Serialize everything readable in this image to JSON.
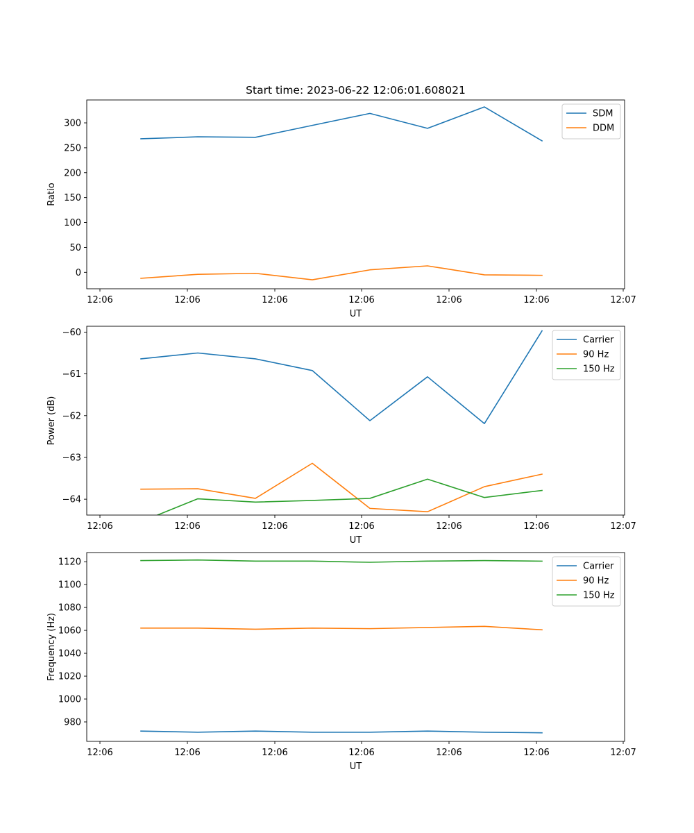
{
  "chart_data": [
    {
      "type": "line",
      "title": "Start time: 2023-06-22 12:06:01.608021",
      "xlabel": "UT",
      "ylabel": "Ratio",
      "x_tick_labels": [
        "12:06",
        "12:06",
        "12:06",
        "12:06",
        "12:06",
        "12:06",
        "12:07"
      ],
      "ylim": [
        -33,
        346
      ],
      "y_ticks": [
        0,
        50,
        100,
        150,
        200,
        250,
        300
      ],
      "legend_position": "top-right",
      "series": [
        {
          "name": "SDM",
          "color": "#1f77b4",
          "values": [
            268,
            272,
            271,
            295,
            319,
            289,
            332,
            264
          ]
        },
        {
          "name": "DDM",
          "color": "#ff7f0e",
          "values": [
            -12,
            -4,
            -2,
            -15,
            5,
            13,
            -5,
            -6
          ]
        }
      ]
    },
    {
      "type": "line",
      "title": "",
      "xlabel": "UT",
      "ylabel": "Power (dB)",
      "x_tick_labels": [
        "12:06",
        "12:06",
        "12:06",
        "12:06",
        "12:06",
        "12:06",
        "12:07"
      ],
      "ylim": [
        -64.38,
        -59.86
      ],
      "y_ticks": [
        -64,
        -63,
        -62,
        -61,
        -60
      ],
      "legend_position": "top-right",
      "series": [
        {
          "name": "Carrier",
          "color": "#1f77b4",
          "values": [
            -60.64,
            -60.5,
            -60.64,
            -60.92,
            -62.12,
            -61.07,
            -62.19,
            -59.97
          ]
        },
        {
          "name": "90 Hz",
          "color": "#ff7f0e",
          "values": [
            -63.76,
            -63.75,
            -63.98,
            -63.14,
            -64.22,
            -64.3,
            -63.7,
            -63.4
          ]
        },
        {
          "name": "150 Hz",
          "color": "#2ca02c",
          "values": [
            -64.54,
            -63.99,
            -64.07,
            -64.03,
            -63.98,
            -63.52,
            -63.96,
            -63.79
          ]
        }
      ]
    },
    {
      "type": "line",
      "title": "",
      "xlabel": "UT",
      "ylabel": "Frequency (Hz)",
      "x_tick_labels": [
        "12:06",
        "12:06",
        "12:06",
        "12:06",
        "12:06",
        "12:06",
        "12:07"
      ],
      "ylim": [
        963,
        1128
      ],
      "y_ticks": [
        980,
        1000,
        1020,
        1040,
        1060,
        1080,
        1100,
        1120
      ],
      "legend_position": "top-right",
      "series": [
        {
          "name": "Carrier",
          "color": "#1f77b4",
          "values": [
            972,
            971,
            972,
            971,
            971,
            972,
            971,
            970.5
          ]
        },
        {
          "name": "90 Hz",
          "color": "#ff7f0e",
          "values": [
            1062,
            1062,
            1061,
            1062,
            1061.5,
            1062.5,
            1063.5,
            1060.5
          ]
        },
        {
          "name": "150 Hz",
          "color": "#2ca02c",
          "values": [
            1121,
            1121.5,
            1120.5,
            1120.5,
            1119.5,
            1120.5,
            1121,
            1120.5
          ]
        }
      ]
    }
  ]
}
